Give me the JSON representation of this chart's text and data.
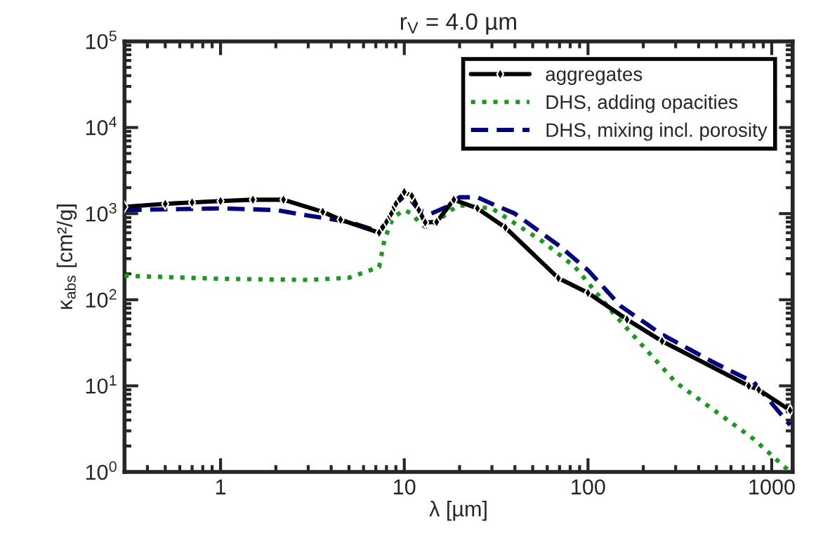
{
  "chart_data": {
    "type": "line",
    "title": "r$_{V}$ = 4.0 µm",
    "xlabel": "λ [µm]",
    "ylabel": "κ$_{abs}$ [cm²/g]",
    "log": "xy",
    "xlim": [
      0.3,
      1300
    ],
    "ylim": [
      1,
      100000
    ],
    "xticks": [
      1,
      10,
      100,
      1000
    ],
    "yticks": [
      {
        "value": 1,
        "label": "10$^{0}$"
      },
      {
        "value": 10,
        "label": "10$^{1}$"
      },
      {
        "value": 100,
        "label": "10$^{2}$"
      },
      {
        "value": 1000,
        "label": "10$^{3}$"
      },
      {
        "value": 10000,
        "label": "10$^{4}$"
      },
      {
        "value": 100000,
        "label": "10$^{5}$"
      }
    ],
    "grid": false,
    "legend": "top right",
    "series": [
      {
        "name": "aggregates",
        "color": "#000000",
        "marker": "diamond",
        "line_style": "solid",
        "x": [
          0.3,
          0.5,
          0.7,
          1.0,
          1.5,
          2.2,
          3.6,
          4.5,
          7.3,
          8,
          8.5,
          9,
          10,
          11,
          12,
          13,
          15,
          18.6,
          25,
          35.5,
          69,
          100,
          163,
          253,
          750,
          850,
          1260
        ],
        "values": [
          1200,
          1300,
          1350,
          1400,
          1450,
          1450,
          1050,
          850,
          600,
          800,
          1000,
          1300,
          1780,
          1600,
          1100,
          790,
          800,
          1450,
          1150,
          690,
          178,
          120,
          59,
          33,
          10,
          9,
          5.2
        ]
      },
      {
        "name": "DHS, adding opacities",
        "color": "#1a9a1a",
        "line_style": "dotted",
        "x": [
          0.3,
          1,
          3,
          5,
          7.3,
          7.8,
          8.5,
          9,
          10,
          11,
          12,
          13,
          15,
          18,
          20,
          30,
          57,
          85,
          137,
          300,
          800,
          1260
        ],
        "values": [
          190,
          175,
          170,
          180,
          240,
          500,
          800,
          950,
          1100,
          1000,
          800,
          700,
          800,
          1100,
          1250,
          1150,
          470,
          240,
          70,
          11,
          2.4,
          1.0
        ]
      },
      {
        "name": "DHS, mixing incl. porosity",
        "color": "#000080",
        "line_style": "dashed",
        "x": [
          0.3,
          1,
          2,
          3,
          5,
          7.3,
          8,
          9,
          10,
          11,
          12,
          14,
          17,
          20,
          25,
          30,
          40,
          70,
          100,
          150,
          250,
          500,
          800,
          1260
        ],
        "values": [
          1100,
          1150,
          1100,
          950,
          800,
          620,
          800,
          1300,
          1600,
          1400,
          1100,
          1000,
          1200,
          1550,
          1550,
          1300,
          1000,
          420,
          220,
          85,
          40,
          18,
          11,
          3.5
        ]
      }
    ]
  }
}
